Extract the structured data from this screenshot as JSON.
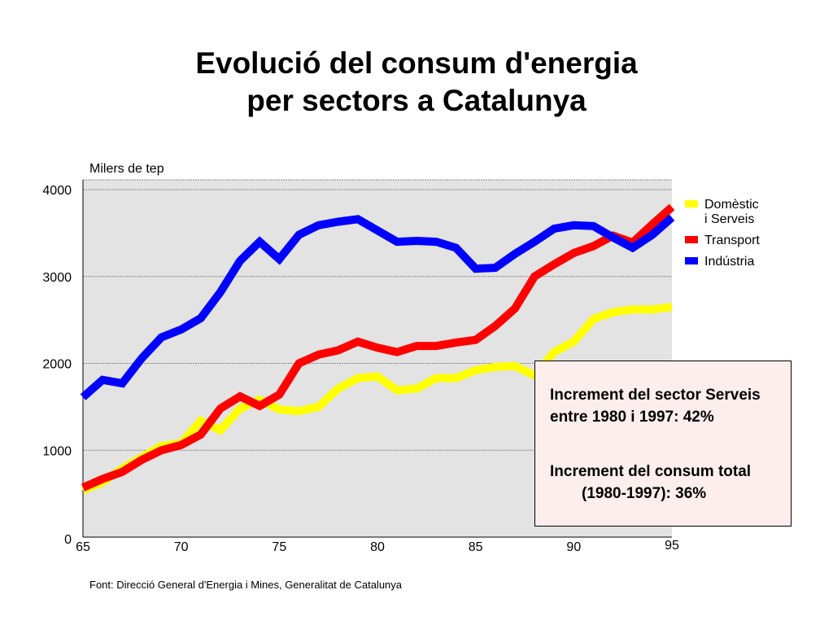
{
  "title": {
    "line1": "Evolució del consum d'energia",
    "line2": "per sectors a Catalunya"
  },
  "unit_label": "Milers de tep",
  "legend": [
    {
      "label": "Domèstic\ni Serveis",
      "color": "#ffff00"
    },
    {
      "label": "Transport",
      "color": "#ff0000"
    },
    {
      "label": "Indústria",
      "color": "#0000ff"
    }
  ],
  "annotation": {
    "line1": "Increment del sector Serveis",
    "line2": "entre 1980 i 1997: 42%",
    "line3": "Increment del consum total",
    "line4": "(1980-1997): 36%"
  },
  "source": "Font: Direcció General d'Energia i Mines, Generalitat de Catalunya",
  "chart_data": {
    "type": "line",
    "title": "Evolució del consum d'energia per sectors a Catalunya",
    "xlabel": "",
    "ylabel": "Milers de tep",
    "xlim": [
      65,
      95
    ],
    "ylim": [
      0,
      4000
    ],
    "x_ticks": [
      "65",
      "70",
      "75",
      "80",
      "85",
      "90",
      "95"
    ],
    "y_ticks": [
      "0",
      "1000",
      "2000",
      "3000",
      "4000"
    ],
    "grid": true,
    "legend_position": "right",
    "x": [
      65,
      66,
      67,
      68,
      69,
      70,
      71,
      72,
      73,
      74,
      75,
      76,
      77,
      78,
      79,
      80,
      81,
      82,
      83,
      84,
      85,
      86,
      87,
      88,
      89,
      90,
      91,
      92,
      93,
      94,
      95
    ],
    "series": [
      {
        "name": "Domèstic i Serveis",
        "color": "#ffff00",
        "values": [
          540,
          630,
          790,
          920,
          1050,
          1080,
          1340,
          1230,
          1480,
          1580,
          1470,
          1450,
          1500,
          1710,
          1830,
          1850,
          1690,
          1710,
          1830,
          1830,
          1920,
          1960,
          1970,
          1860,
          2130,
          2250,
          2510,
          2590,
          2620,
          2620,
          2650
        ]
      },
      {
        "name": "Transport",
        "color": "#ff0000",
        "values": [
          570,
          670,
          750,
          890,
          1000,
          1060,
          1180,
          1480,
          1620,
          1510,
          1640,
          2000,
          2100,
          2150,
          2250,
          2180,
          2130,
          2200,
          2200,
          2240,
          2270,
          2430,
          2630,
          3000,
          3140,
          3270,
          3350,
          3470,
          3390,
          3600,
          3800
        ]
      },
      {
        "name": "Indústria",
        "color": "#0000ff",
        "values": [
          1610,
          1810,
          1770,
          2060,
          2300,
          2390,
          2520,
          2820,
          3180,
          3400,
          3200,
          3480,
          3590,
          3630,
          3660,
          3530,
          3400,
          3410,
          3400,
          3330,
          3090,
          3100,
          3260,
          3400,
          3550,
          3590,
          3580,
          3450,
          3330,
          3480,
          3680
        ]
      }
    ]
  }
}
